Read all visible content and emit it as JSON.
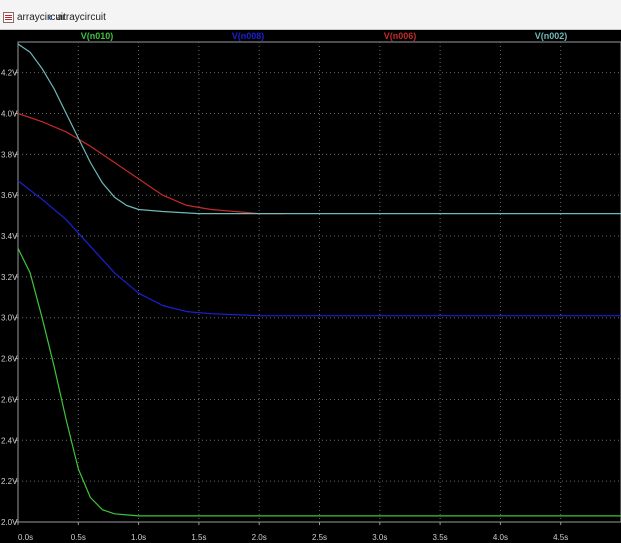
{
  "tabs": [
    {
      "label": "arraycircuit",
      "icon": "schematic-icon"
    },
    {
      "label": "arraycircuit",
      "icon": "waveform-icon"
    }
  ],
  "chart_data": {
    "type": "line",
    "title": "",
    "xlabel": "",
    "ylabel": "",
    "xlim": [
      0,
      5.0
    ],
    "ylim": [
      2.0,
      4.35
    ],
    "grid": true,
    "x_ticks": [
      "0.0s",
      "0.5s",
      "1.0s",
      "1.5s",
      "2.0s",
      "2.5s",
      "3.0s",
      "3.5s",
      "4.0s",
      "4.5s"
    ],
    "x_tick_values": [
      0,
      0.5,
      1.0,
      1.5,
      2.0,
      2.5,
      3.0,
      3.5,
      4.0,
      4.5
    ],
    "y_ticks": [
      "2.0V",
      "2.2V",
      "2.4V",
      "2.6V",
      "2.8V",
      "3.0V",
      "3.2V",
      "3.4V",
      "3.6V",
      "3.8V",
      "4.0V",
      "4.2V"
    ],
    "y_tick_values": [
      2.0,
      2.2,
      2.4,
      2.6,
      2.8,
      3.0,
      3.2,
      3.4,
      3.6,
      3.8,
      4.0,
      4.2
    ],
    "series": [
      {
        "name": "V(n010)",
        "color": "#3ec43e",
        "points": [
          [
            0,
            3.34
          ],
          [
            0.1,
            3.22
          ],
          [
            0.2,
            3.0
          ],
          [
            0.3,
            2.76
          ],
          [
            0.4,
            2.5
          ],
          [
            0.5,
            2.26
          ],
          [
            0.6,
            2.12
          ],
          [
            0.7,
            2.06
          ],
          [
            0.8,
            2.04
          ],
          [
            1.0,
            2.03
          ],
          [
            1.5,
            2.03
          ],
          [
            2.0,
            2.03
          ],
          [
            3.0,
            2.03
          ],
          [
            4.0,
            2.03
          ],
          [
            5.0,
            2.03
          ]
        ]
      },
      {
        "name": "V(n008)",
        "color": "#1e1ed6",
        "points": [
          [
            0,
            3.67
          ],
          [
            0.2,
            3.58
          ],
          [
            0.4,
            3.48
          ],
          [
            0.6,
            3.35
          ],
          [
            0.8,
            3.22
          ],
          [
            1.0,
            3.12
          ],
          [
            1.2,
            3.06
          ],
          [
            1.4,
            3.03
          ],
          [
            1.6,
            3.02
          ],
          [
            2.0,
            3.01
          ],
          [
            3.0,
            3.01
          ],
          [
            4.0,
            3.01
          ],
          [
            5.0,
            3.01
          ]
        ]
      },
      {
        "name": "V(n006)",
        "color": "#c42a2a",
        "points": [
          [
            0,
            4.0
          ],
          [
            0.2,
            3.96
          ],
          [
            0.4,
            3.91
          ],
          [
            0.6,
            3.84
          ],
          [
            0.8,
            3.76
          ],
          [
            1.0,
            3.68
          ],
          [
            1.2,
            3.6
          ],
          [
            1.4,
            3.55
          ],
          [
            1.6,
            3.53
          ],
          [
            1.8,
            3.52
          ],
          [
            2.0,
            3.51
          ],
          [
            2.2,
            3.51
          ]
        ]
      },
      {
        "name": "V(n002)",
        "color": "#6fb9b9",
        "points": [
          [
            0,
            4.34
          ],
          [
            0.1,
            4.3
          ],
          [
            0.2,
            4.22
          ],
          [
            0.3,
            4.12
          ],
          [
            0.4,
            4.0
          ],
          [
            0.5,
            3.88
          ],
          [
            0.6,
            3.76
          ],
          [
            0.7,
            3.66
          ],
          [
            0.8,
            3.59
          ],
          [
            0.9,
            3.55
          ],
          [
            1.0,
            3.53
          ],
          [
            1.2,
            3.52
          ],
          [
            1.5,
            3.51
          ],
          [
            2.0,
            3.51
          ],
          [
            3.0,
            3.51
          ],
          [
            4.0,
            3.51
          ],
          [
            5.0,
            3.51
          ]
        ]
      }
    ],
    "legend_position": "top"
  }
}
